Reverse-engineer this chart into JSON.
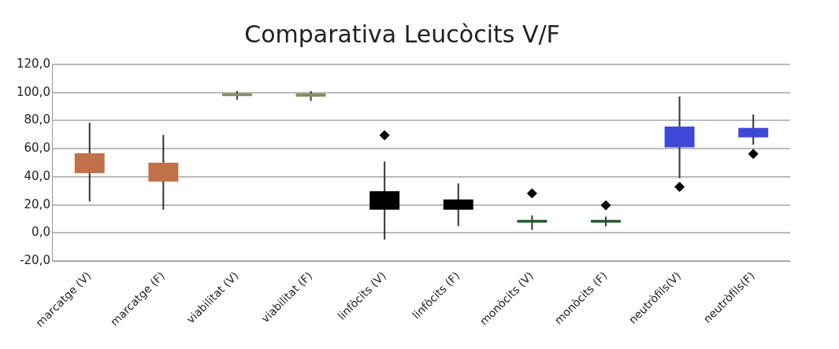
{
  "chart_data": {
    "type": "box",
    "title": "Comparativa Leucòcits V/F",
    "categories": [
      "marcatge (V)",
      "marcatge (F)",
      "viabilitat (V)",
      "viabilitat (F)",
      "linfòcits (V)",
      "linfòcits (F)",
      "monòcits (V)",
      "monòcits (F)",
      "neutròfils(V)",
      "neutròfils(F)"
    ],
    "boxes": [
      {
        "low": 22.4,
        "q1": 42.6,
        "q3": 56.7,
        "high": 78.5
      },
      {
        "low": 16.6,
        "q1": 36.6,
        "q3": 50.0,
        "high": 69.8
      },
      {
        "low": 95,
        "q1": 97.5,
        "q3": 99.5,
        "high": 101
      },
      {
        "low": 94,
        "q1": 97,
        "q3": 99.5,
        "high": 101
      },
      {
        "low": -4.6,
        "q1": 16.6,
        "q3": 29.7,
        "high": 50.9,
        "outliers": [
          69.6
        ]
      },
      {
        "low": 4.8,
        "q1": 16.6,
        "q3": 23.9,
        "high": 35.3
      },
      {
        "low": 2.1,
        "q1": 7.3,
        "q3": 9.3,
        "high": 12.5,
        "outliers": [
          28.2
        ]
      },
      {
        "low": 4.8,
        "q1": 7.3,
        "q3": 9.3,
        "high": 11.6,
        "outliers": [
          19.7
        ]
      },
      {
        "low": 39.0,
        "q1": 60.9,
        "q3": 75.8,
        "high": 97.2,
        "outliers": [
          32.8
        ]
      },
      {
        "low": 62.9,
        "q1": 68.1,
        "q3": 74.8,
        "high": 84.3,
        "outliers": [
          56.3
        ]
      }
    ],
    "colors": [
      "#c0714a",
      "#c0714a",
      "#8b8a5e",
      "#8b8a5e",
      "#000000",
      "#000000",
      "#1f5a2a",
      "#1f5a2a",
      "#3f48d6",
      "#3f48d6"
    ],
    "ylim": [
      -20,
      120
    ],
    "yticks": [
      {
        "value": -20,
        "label": "-20,0"
      },
      {
        "value": 0,
        "label": "0,0"
      },
      {
        "value": 20,
        "label": "20,0"
      },
      {
        "value": 40,
        "label": "40,0"
      },
      {
        "value": 60,
        "label": "60,0"
      },
      {
        "value": 80,
        "label": "80,0"
      },
      {
        "value": 100,
        "label": "100,0"
      },
      {
        "value": 120,
        "label": "120,0"
      }
    ],
    "grid": "y",
    "legend": false,
    "marker": "diamond"
  }
}
